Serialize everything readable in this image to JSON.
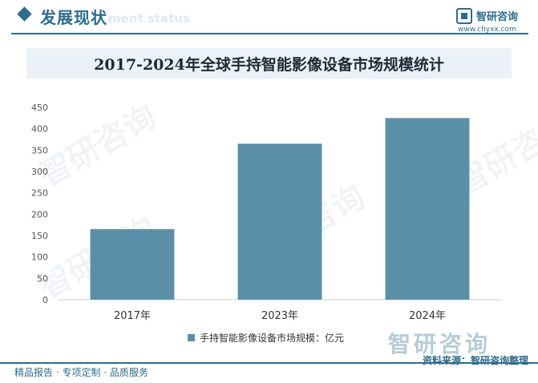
{
  "header": {
    "section_title": "发展现状",
    "section_subtitle": "ment status",
    "brand_name": "智研咨询",
    "brand_url": "www.chyxx.com"
  },
  "colors": {
    "accent": "#2e6c8d",
    "bar": "#5b8fa8",
    "title_bg": "#eaf1f7"
  },
  "chart_data": {
    "type": "bar",
    "title": "2017-2024年全球手持智能影像设备市场规模统计",
    "categories": [
      "2017年",
      "2023年",
      "2024年"
    ],
    "series": [
      {
        "name": "手持智能影像设备市场规模：亿元",
        "values": [
          165,
          365,
          425
        ]
      }
    ],
    "ylim": [
      0,
      450
    ],
    "yticks": [
      0,
      50,
      100,
      150,
      200,
      250,
      300,
      350,
      400,
      450
    ],
    "grid": false,
    "legend": "bottom-center"
  },
  "watermark_text": "智研咨询",
  "footer": {
    "left": "精品报告 · 专项定制 · 品质服务",
    "right": "资料来源：智研咨询整理",
    "brand": "智研咨询"
  }
}
